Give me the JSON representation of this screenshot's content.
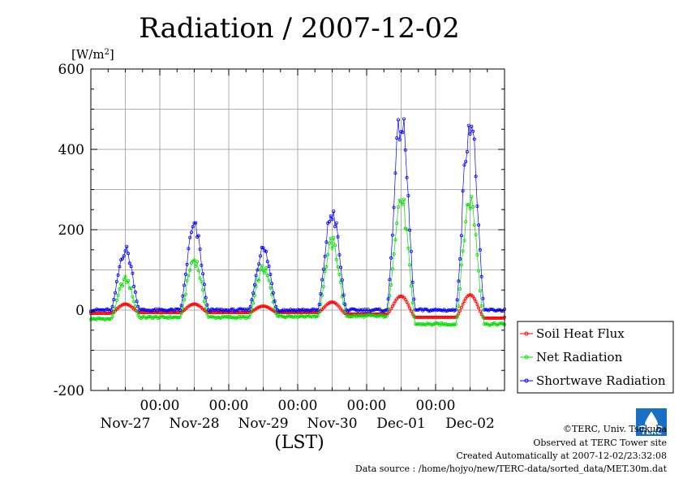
{
  "chart_data": {
    "type": "line",
    "title": "Radiation / 2007-12-02",
    "ylabel_prefix": "[W/m",
    "ylabel_sup": "2",
    "ylabel_suffix": "]",
    "xlabel": "(LST)",
    "ylim": [
      -200,
      600
    ],
    "yticks": [
      "600",
      "400",
      "200",
      "0",
      "-200"
    ],
    "ytick_values": [
      600,
      400,
      200,
      0,
      -200
    ],
    "xlim_days": [
      0,
      6
    ],
    "time_labels": [
      "00:00",
      "00:00",
      "00:00",
      "00:00",
      "00:00"
    ],
    "day_labels": [
      "Nov-27",
      "Nov-28",
      "Nov-29",
      "Nov-30",
      "Dec-01",
      "Dec-02"
    ],
    "grid": true,
    "legend_position": "right-bottom-outside",
    "series": [
      {
        "name": "Soil Heat Flux",
        "color": "#ff0000",
        "peaks": [
          15,
          15,
          10,
          20,
          35,
          38
        ],
        "night": [
          -8,
          -6,
          -6,
          -6,
          -10,
          -18,
          -20
        ]
      },
      {
        "name": "Net Radiation",
        "color": "#00dd00",
        "peaks": [
          85,
          140,
          115,
          185,
          305,
          305
        ],
        "night": [
          -22,
          -18,
          -18,
          -15,
          -15,
          -35,
          -35
        ]
      },
      {
        "name": "Shortwave Radiation",
        "color": "#0000ff",
        "peaks": [
          165,
          225,
          165,
          265,
          515,
          520
        ],
        "night": [
          0,
          0,
          0,
          0,
          0,
          0,
          0
        ]
      }
    ]
  },
  "footer": {
    "copyright": "©TERC, Univ. Tsukuba",
    "observed": "Observed at TERC Tower site",
    "created": "Created Automatically at 2007-12-02/23:32:08",
    "source": "Data source : /home/hojyo/new/TERC-data/sorted_data/MET.30m.dat"
  },
  "logo": {
    "text": "TERC",
    "color": "#1a6fc4"
  }
}
